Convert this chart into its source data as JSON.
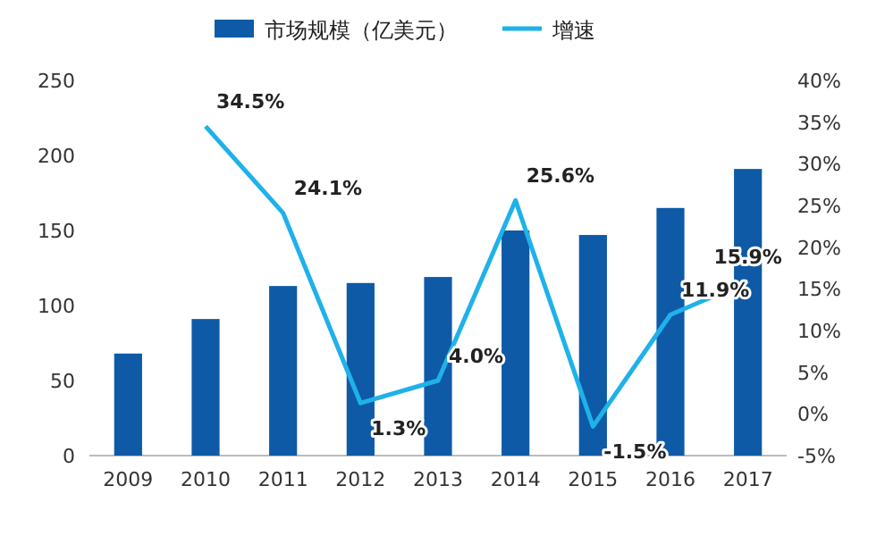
{
  "chart_data": {
    "type": "bar",
    "categories": [
      "2009",
      "2010",
      "2011",
      "2012",
      "2013",
      "2014",
      "2015",
      "2016",
      "2017"
    ],
    "series": [
      {
        "name": "市场规模（亿美元）",
        "color": "#0e5aa7",
        "values": [
          68,
          91,
          113,
          115,
          119,
          150,
          147,
          165,
          191
        ]
      },
      {
        "name": "增速",
        "type": "line",
        "axis": "y2",
        "color": "#1fb1ea",
        "values": [
          null,
          34.5,
          24.1,
          1.3,
          4.0,
          25.6,
          -1.5,
          11.9,
          15.9
        ],
        "value_labels": [
          null,
          "34.5%",
          "24.1%",
          "1.3%",
          "4.0%",
          "25.6%",
          "-1.5%",
          "11.9%",
          "15.9%"
        ]
      }
    ],
    "ylim": [
      0,
      250
    ],
    "yticks": [
      0,
      50,
      100,
      150,
      200,
      250
    ],
    "y2lim": [
      -5,
      40
    ],
    "y2ticks": [
      {
        "value": -5,
        "label": "-5%"
      },
      {
        "value": 0,
        "label": "0%"
      },
      {
        "value": 5,
        "label": "5%"
      },
      {
        "value": 10,
        "label": "10%"
      },
      {
        "value": 15,
        "label": "15%"
      },
      {
        "value": 20,
        "label": "20%"
      },
      {
        "value": 25,
        "label": "25%"
      },
      {
        "value": 30,
        "label": "30%"
      },
      {
        "value": 35,
        "label": "35%"
      },
      {
        "value": 40,
        "label": "40%"
      }
    ],
    "legend": "top"
  }
}
